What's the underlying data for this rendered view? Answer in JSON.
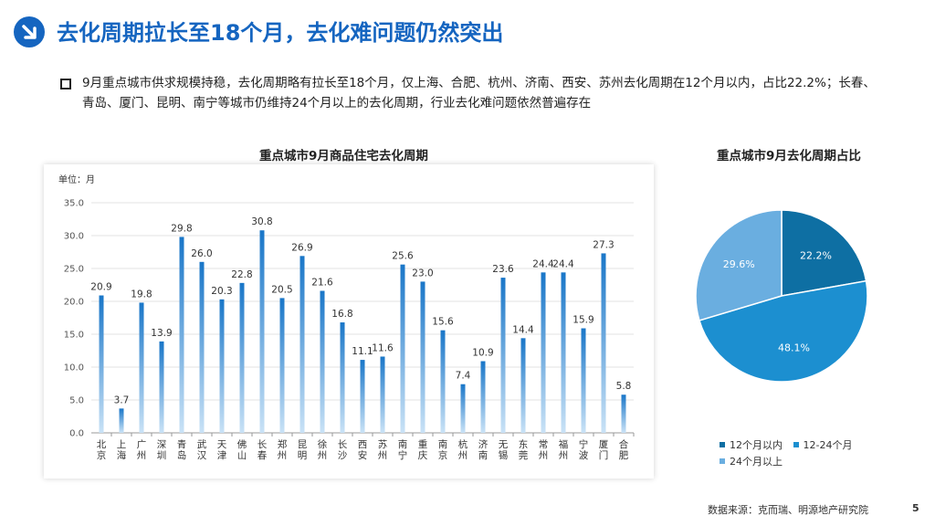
{
  "header": {
    "title": "去化周期拉长至18个月，去化难问题仍然突出"
  },
  "summary": "9月重点城市供求规模持稳，去化周期略有拉长至18个月，仅上海、合肥、杭州、济南、西安、苏州去化周期在12个月以内，占比22.2%；长春、青岛、厦门、昆明、南宁等城市仍维持24个月以上的去化周期，行业去化难问题依然普遍存在",
  "chart_data": [
    {
      "type": "bar",
      "title": "重点城市9月商品住宅去化周期",
      "unit_label": "单位：月",
      "categories": [
        "北京",
        "上海",
        "广州",
        "深圳",
        "青岛",
        "武汉",
        "天津",
        "佛山",
        "长春",
        "郑州",
        "昆明",
        "徐州",
        "长沙",
        "西安",
        "苏州",
        "南宁",
        "重庆",
        "南京",
        "杭州",
        "济南",
        "无锡",
        "东莞",
        "常州",
        "福州",
        "宁波",
        "厦门",
        "合肥"
      ],
      "values": [
        20.9,
        3.7,
        19.8,
        13.9,
        29.8,
        26.0,
        20.3,
        22.8,
        30.8,
        20.5,
        26.9,
        21.6,
        16.8,
        11.1,
        11.6,
        25.6,
        23.0,
        15.6,
        7.4,
        10.9,
        23.6,
        14.4,
        24.4,
        24.4,
        15.9,
        27.3,
        5.8
      ],
      "value_labels": [
        "20.9",
        "3.7",
        "19.8",
        "13.9",
        "29.8",
        "26.0",
        "20.3",
        "22.8",
        "30.8",
        "20.5",
        "26.9",
        "21.6",
        "16.8",
        "11.1",
        "11.6",
        "25.6",
        "23.0",
        "15.6",
        "7.4",
        "10.9",
        "23.6",
        "14.4",
        "24.4",
        "24.4",
        "15.9",
        "27.3",
        "5.8"
      ],
      "ylim": [
        0,
        35
      ],
      "yticks": [
        "0.0",
        "5.0",
        "10.0",
        "15.0",
        "20.0",
        "25.0",
        "30.0",
        "35.0"
      ],
      "grid": true,
      "color": "#1976c8"
    },
    {
      "type": "pie",
      "title": "重点城市9月去化周期占比",
      "slices": [
        {
          "name": "12个月以内",
          "value": 22.2,
          "label": "22.2%",
          "color": "#0e6fa3"
        },
        {
          "name": "12-24个月",
          "value": 48.1,
          "label": "48.1%",
          "color": "#1c8fd0"
        },
        {
          "name": "24个月以上",
          "value": 29.6,
          "label": "29.6%",
          "color": "#6aaee0"
        }
      ],
      "legend_position": "bottom"
    }
  ],
  "footer": {
    "source": "数据来源：克而瑞、明源地产研究院",
    "page": "5"
  }
}
